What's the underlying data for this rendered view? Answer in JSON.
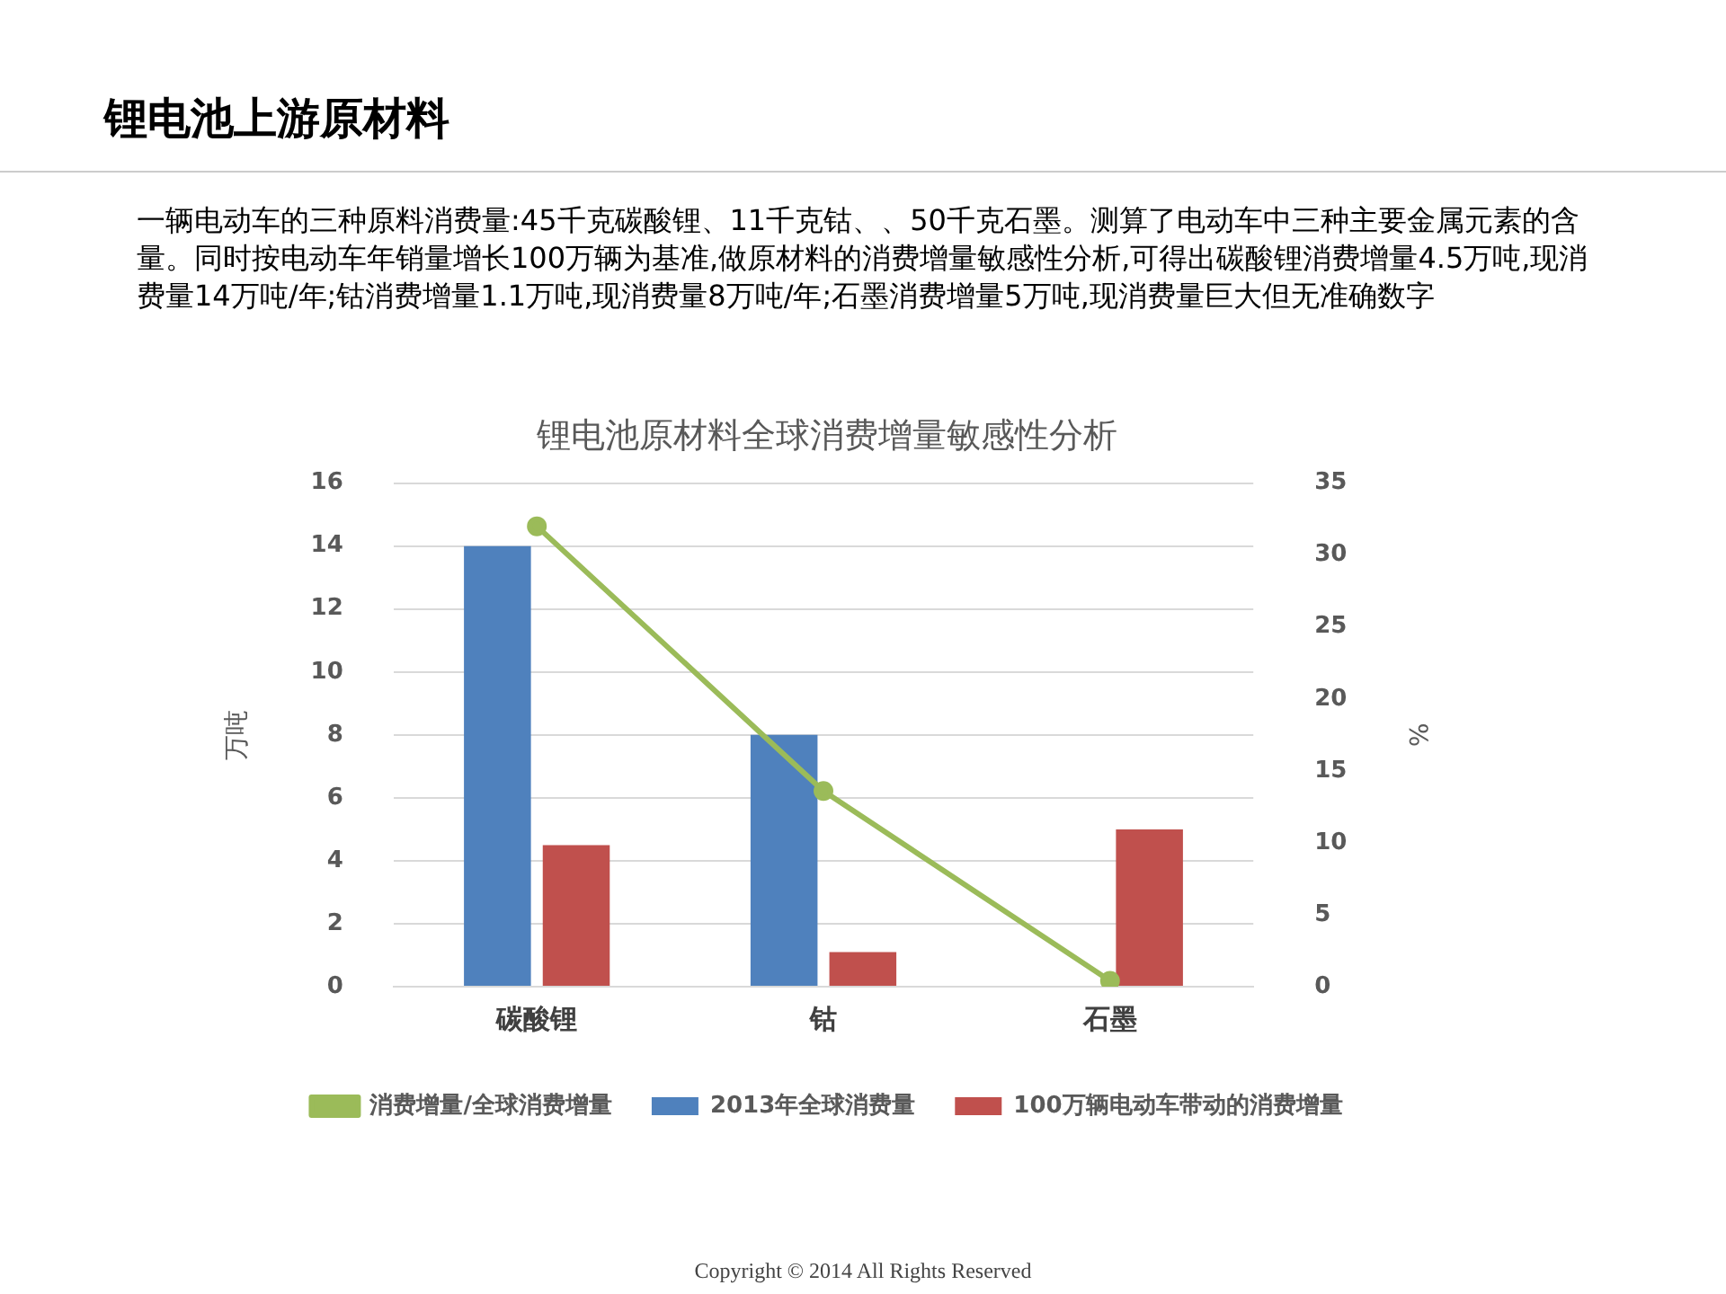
{
  "chart_data": {
    "type": "bar",
    "title": "锂电池上游原材料",
    "subtitle": "锂电池原材料全球消费增量敏感性分析",
    "annotations": [
      "一辆电动车的三种原料消费量:45千克碳酸锂、11千克钴、、50千克石墨。测算了电动车中三种主要金属元素的含量。同时按电动车年销量增长100万辆为基准,做原材料的消费增量敏感性分析,可得出碳酸锂消费增量4.5万吨,现消费量14万吨/年;钴消费增量1.1万吨,现消费量8万吨/年;石墨消费增量5万吨,现消费量巨大但无准确数字",
      "Copyright © 2014 All Rights Reserved"
    ],
    "categories": [
      "碳酸锂",
      "钴",
      "石墨"
    ],
    "ylabel": "万吨",
    "y2label": "%",
    "series": [
      {
        "name": "2013年全球消费量",
        "color": "#4f81bd",
        "values": [
          14,
          8,
          null
        ]
      },
      {
        "name": "100万辆电动车带动的消费增量",
        "color": "#c0504d",
        "values": [
          4.5,
          1.1,
          5
        ]
      },
      {
        "name": "消费增量/全球消费增量",
        "type": "line",
        "axis": "y2",
        "color": "#9bbb59",
        "values": [
          32,
          13.6,
          0.4
        ]
      }
    ],
    "ylim": [
      0,
      16
    ],
    "yticks": [
      0,
      2,
      4,
      6,
      8,
      10,
      12,
      14,
      16
    ],
    "y2lim": [
      0,
      35
    ],
    "y2ticks": [
      0,
      5,
      10,
      15,
      20,
      25,
      30,
      35
    ],
    "grid": "y",
    "legend": "bottom",
    "marker": "circle",
    "line_style": "solid"
  }
}
